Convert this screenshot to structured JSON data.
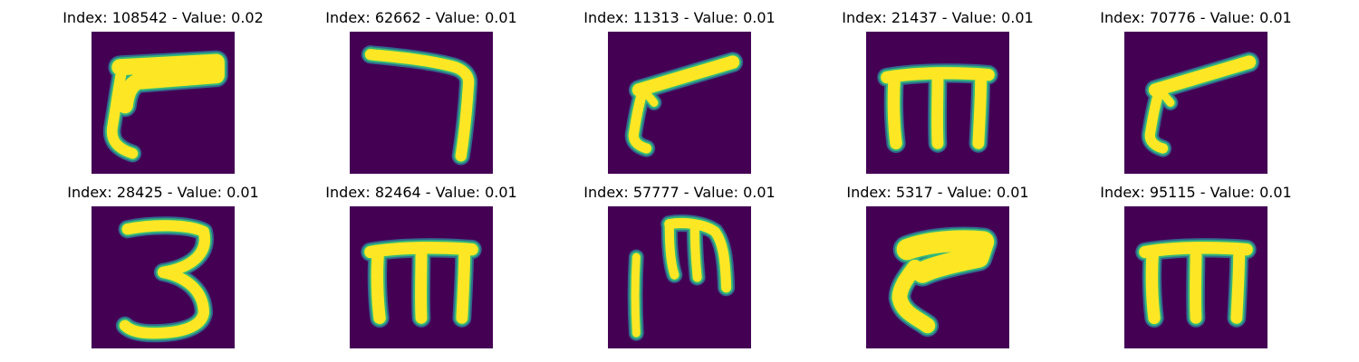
{
  "colors": {
    "background": "#440154",
    "edge_dark": "#31688e",
    "edge": "#35b779",
    "stroke": "#fde725"
  },
  "panels": [
    {
      "title": "Index: 108542 - Value: 0.02",
      "glyph": "hook-left"
    },
    {
      "title": "Index: 62662 - Value: 0.01",
      "glyph": "seven"
    },
    {
      "title": "Index: 11313 - Value: 0.01",
      "glyph": "slanted-seven"
    },
    {
      "title": "Index: 21437 - Value: 0.01",
      "glyph": "m-shape"
    },
    {
      "title": "Index: 70776 - Value: 0.01",
      "glyph": "slanted-seven"
    },
    {
      "title": "Index: 28425 - Value: 0.01",
      "glyph": "three"
    },
    {
      "title": "Index: 82464 - Value: 0.01",
      "glyph": "m-shape"
    },
    {
      "title": "Index: 57777 - Value: 0.01",
      "glyph": "split-m"
    },
    {
      "title": "Index: 5317 - Value: 0.01",
      "glyph": "thick-hook"
    },
    {
      "title": "Index: 95115 - Value: 0.01",
      "glyph": "m-shape"
    }
  ]
}
